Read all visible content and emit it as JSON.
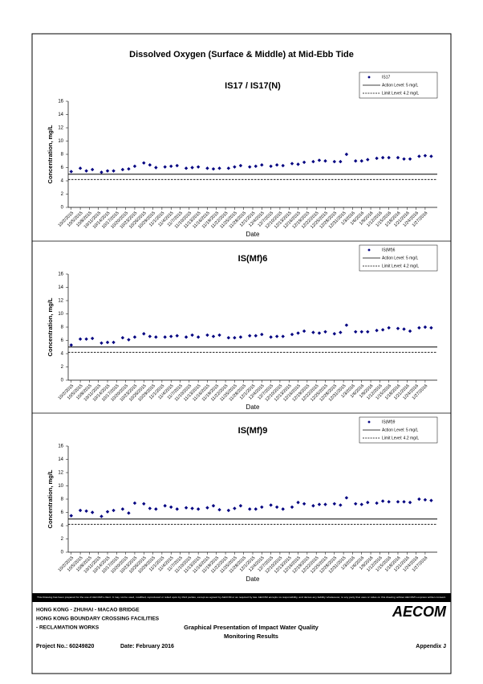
{
  "header": {
    "title": "Dissolved Oxygen (Surface & Middle) at Mid-Ebb Tide"
  },
  "chart_data": [
    {
      "type": "scatter",
      "title": "IS17 / IS17(N)",
      "x_label": "Date",
      "y_label": "Concentration, mg/L",
      "x": [
        "10/2/2015",
        "10/5/2015",
        "10/7/2015",
        "10/9/2015",
        "10/12/2015",
        "10/14/2015",
        "10/16/2015",
        "10/19/2015",
        "10/21/2015",
        "10/23/2015",
        "10/26/2015",
        "10/28/2015",
        "10/30/2015",
        "11/2/2015",
        "11/4/2015",
        "11/6/2015",
        "11/9/2015",
        "11/11/2015",
        "11/13/2015",
        "11/16/2015",
        "11/18/2015",
        "11/20/2015",
        "11/23/2015",
        "11/25/2015",
        "11/27/2015",
        "11/30/2015",
        "12/2/2015",
        "12/4/2015",
        "12/7/2015",
        "12/9/2015",
        "12/11/2015",
        "12/14/2015",
        "12/16/2015",
        "12/18/2015",
        "12/21/2015",
        "12/23/2015",
        "12/25/2015",
        "12/28/2015",
        "12/30/2015",
        "1/1/2016",
        "1/4/2016",
        "1/6/2016",
        "1/8/2016",
        "1/11/2016",
        "1/13/2016",
        "1/15/2016",
        "1/18/2016",
        "1/20/2016",
        "1/22/2016",
        "1/25/2016",
        "1/27/2016",
        "1/29/2016"
      ],
      "xlim": [
        "10/1/2015",
        "1/31/2016"
      ],
      "xticks": [
        "10/2/2015",
        "10/5/2015",
        "10/8/2015",
        "10/11/2015",
        "10/14/2015",
        "10/17/2015",
        "10/20/2015",
        "10/23/2015",
        "10/26/2015",
        "10/29/2015",
        "11/1/2015",
        "11/4/2015",
        "11/7/2015",
        "11/10/2015",
        "11/13/2015",
        "11/16/2015",
        "11/19/2015",
        "11/22/2015",
        "11/25/2015",
        "11/28/2015",
        "12/1/2015",
        "12/4/2015",
        "12/7/2015",
        "12/10/2015",
        "12/13/2015",
        "12/16/2015",
        "12/19/2015",
        "12/22/2015",
        "12/25/2015",
        "12/28/2015",
        "12/31/2015",
        "1/3/2016",
        "1/6/2016",
        "1/9/2016",
        "1/12/2016",
        "1/15/2016",
        "1/18/2016",
        "1/21/2016",
        "1/24/2016",
        "1/27/2016"
      ],
      "ylim": [
        0,
        16
      ],
      "yticks": [
        0,
        2,
        4,
        6,
        8,
        10,
        12,
        14,
        16
      ],
      "series": [
        {
          "name": "IS17",
          "color": "#000080",
          "values": [
            5.4,
            5.9,
            5.5,
            5.7,
            5.3,
            5.5,
            5.5,
            5.7,
            5.8,
            6.2,
            6.7,
            6.4,
            6.0,
            6.1,
            6.2,
            6.3,
            5.9,
            6.0,
            6.1,
            5.9,
            5.8,
            5.9,
            5.9,
            6.1,
            6.3,
            6.1,
            6.2,
            6.4,
            6.2,
            6.4,
            6.3,
            6.6,
            6.5,
            6.8,
            6.9,
            7.1,
            7.0,
            6.9,
            6.9,
            8.0,
            7.0,
            7.0,
            7.2,
            7.4,
            7.5,
            7.5,
            7.5,
            7.3,
            7.3,
            7.7,
            7.8,
            7.7
          ]
        }
      ],
      "reference_lines": [
        {
          "name": "Action Level: 5 mg/L",
          "value": 5,
          "style": "solid"
        },
        {
          "name": "Limit Level: 4.2 mg/L",
          "value": 4.2,
          "style": "dashed"
        }
      ],
      "legend": "upper right"
    },
    {
      "type": "scatter",
      "title": "IS(Mf)6",
      "x_label": "Date",
      "y_label": "Concentration, mg/L",
      "x": [
        "10/2/2015",
        "10/5/2015",
        "10/7/2015",
        "10/9/2015",
        "10/12/2015",
        "10/14/2015",
        "10/16/2015",
        "10/19/2015",
        "10/21/2015",
        "10/23/2015",
        "10/26/2015",
        "10/28/2015",
        "10/30/2015",
        "11/2/2015",
        "11/4/2015",
        "11/6/2015",
        "11/9/2015",
        "11/11/2015",
        "11/13/2015",
        "11/16/2015",
        "11/18/2015",
        "11/20/2015",
        "11/23/2015",
        "11/25/2015",
        "11/27/2015",
        "11/30/2015",
        "12/2/2015",
        "12/4/2015",
        "12/7/2015",
        "12/9/2015",
        "12/11/2015",
        "12/14/2015",
        "12/16/2015",
        "12/18/2015",
        "12/21/2015",
        "12/23/2015",
        "12/25/2015",
        "12/28/2015",
        "12/30/2015",
        "1/1/2016",
        "1/4/2016",
        "1/6/2016",
        "1/8/2016",
        "1/11/2016",
        "1/13/2016",
        "1/15/2016",
        "1/18/2016",
        "1/20/2016",
        "1/22/2016",
        "1/25/2016",
        "1/27/2016",
        "1/29/2016"
      ],
      "xlim": [
        "10/1/2015",
        "1/31/2016"
      ],
      "xticks": [
        "10/2/2015",
        "10/5/2015",
        "10/8/2015",
        "10/11/2015",
        "10/14/2015",
        "10/17/2015",
        "10/20/2015",
        "10/23/2015",
        "10/26/2015",
        "10/29/2015",
        "11/1/2015",
        "11/4/2015",
        "11/7/2015",
        "11/10/2015",
        "11/13/2015",
        "11/16/2015",
        "11/19/2015",
        "11/22/2015",
        "11/25/2015",
        "11/28/2015",
        "12/1/2015",
        "12/4/2015",
        "12/7/2015",
        "12/10/2015",
        "12/13/2015",
        "12/16/2015",
        "12/19/2015",
        "12/22/2015",
        "12/25/2015",
        "12/28/2015",
        "12/31/2015",
        "1/3/2016",
        "1/6/2016",
        "1/9/2016",
        "1/12/2016",
        "1/15/2016",
        "1/18/2016",
        "1/21/2016",
        "1/24/2016",
        "1/27/2016"
      ],
      "ylim": [
        0,
        16
      ],
      "yticks": [
        0,
        2,
        4,
        6,
        8,
        10,
        12,
        14,
        16
      ],
      "series": [
        {
          "name": "IS(Mf)6",
          "color": "#000080",
          "values": [
            5.3,
            6.2,
            6.2,
            6.3,
            5.6,
            5.7,
            5.7,
            6.4,
            6.1,
            6.5,
            7.0,
            6.6,
            6.5,
            6.5,
            6.6,
            6.7,
            6.5,
            6.8,
            6.5,
            6.8,
            6.6,
            6.8,
            6.4,
            6.4,
            6.5,
            6.7,
            6.7,
            6.9,
            6.5,
            6.6,
            6.6,
            6.9,
            7.1,
            7.4,
            7.2,
            7.1,
            7.3,
            7.0,
            7.2,
            8.3,
            7.3,
            7.3,
            7.3,
            7.5,
            7.6,
            7.9,
            7.8,
            7.7,
            7.4,
            7.9,
            8.0,
            7.9
          ]
        }
      ],
      "reference_lines": [
        {
          "name": "Action Level: 5 mg/L",
          "value": 5,
          "style": "solid"
        },
        {
          "name": "Limit Level: 4.2 mg/L",
          "value": 4.2,
          "style": "dashed"
        }
      ],
      "legend": "upper right"
    },
    {
      "type": "scatter",
      "title": "IS(Mf)9",
      "x_label": "Date",
      "y_label": "Concentration, mg/L",
      "x": [
        "10/2/2015",
        "10/5/2015",
        "10/7/2015",
        "10/9/2015",
        "10/12/2015",
        "10/14/2015",
        "10/16/2015",
        "10/19/2015",
        "10/21/2015",
        "10/23/2015",
        "10/26/2015",
        "10/28/2015",
        "10/30/2015",
        "11/2/2015",
        "11/4/2015",
        "11/6/2015",
        "11/9/2015",
        "11/11/2015",
        "11/13/2015",
        "11/16/2015",
        "11/18/2015",
        "11/20/2015",
        "11/23/2015",
        "11/25/2015",
        "11/27/2015",
        "11/30/2015",
        "12/2/2015",
        "12/4/2015",
        "12/7/2015",
        "12/9/2015",
        "12/11/2015",
        "12/14/2015",
        "12/16/2015",
        "12/18/2015",
        "12/21/2015",
        "12/23/2015",
        "12/25/2015",
        "12/28/2015",
        "12/30/2015",
        "1/1/2016",
        "1/4/2016",
        "1/6/2016",
        "1/8/2016",
        "1/11/2016",
        "1/13/2016",
        "1/15/2016",
        "1/18/2016",
        "1/20/2016",
        "1/22/2016",
        "1/25/2016",
        "1/27/2016",
        "1/29/2016"
      ],
      "xlim": [
        "10/1/2015",
        "1/31/2016"
      ],
      "xticks": [
        "10/2/2015",
        "10/5/2015",
        "10/8/2015",
        "10/11/2015",
        "10/14/2015",
        "10/17/2015",
        "10/20/2015",
        "10/23/2015",
        "10/26/2015",
        "10/29/2015",
        "11/1/2015",
        "11/4/2015",
        "11/7/2015",
        "11/10/2015",
        "11/13/2015",
        "11/16/2015",
        "11/19/2015",
        "11/22/2015",
        "11/25/2015",
        "11/28/2015",
        "12/1/2015",
        "12/4/2015",
        "12/7/2015",
        "12/10/2015",
        "12/13/2015",
        "12/16/2015",
        "12/19/2015",
        "12/22/2015",
        "12/25/2015",
        "12/28/2015",
        "12/31/2015",
        "1/3/2016",
        "1/6/2016",
        "1/9/2016",
        "1/12/2016",
        "1/15/2016",
        "1/18/2016",
        "1/21/2016",
        "1/24/2016",
        "1/27/2016"
      ],
      "ylim": [
        0,
        16
      ],
      "yticks": [
        0,
        2,
        4,
        6,
        8,
        10,
        12,
        14,
        16
      ],
      "series": [
        {
          "name": "IS(Mf)9",
          "color": "#000080",
          "values": [
            5.5,
            6.3,
            6.2,
            6.0,
            5.4,
            6.1,
            6.3,
            6.5,
            5.9,
            7.4,
            7.3,
            6.6,
            6.5,
            7.0,
            6.8,
            6.5,
            6.7,
            6.6,
            6.5,
            6.7,
            7.0,
            6.4,
            6.3,
            6.6,
            7.0,
            6.5,
            6.5,
            6.8,
            7.1,
            6.8,
            6.5,
            6.8,
            7.5,
            7.3,
            7.0,
            7.2,
            7.2,
            7.3,
            7.1,
            8.2,
            7.3,
            7.2,
            7.5,
            7.4,
            7.7,
            7.6,
            7.6,
            7.6,
            7.5,
            8.0,
            7.9,
            7.8
          ]
        }
      ],
      "reference_lines": [
        {
          "name": "Action Level: 5 mg/L",
          "value": 5,
          "style": "solid"
        },
        {
          "name": "Limit Level: 4.2 mg/L",
          "value": 4.2,
          "style": "dashed"
        }
      ],
      "legend": "upper right"
    }
  ],
  "footer": {
    "disclaimer": "This Drawing has been prepared for the use of AECOM's client. It may not be used, modified, reproduced or relied upon by third parties, except as agreed by AECOM or as required by law. AECOM accepts no responsibility, and denies any liability whatsoever, to any party that uses or relies on this drawing without AECOM's express written consent.",
    "project_lines": [
      "HONG KONG - ZHUHAI - MACAO BRIDGE",
      "HONG KONG BOUNDARY CROSSING FACILITIES",
      "- RECLAMATION WORKS"
    ],
    "logo": "AECOM",
    "subtitle_lines": [
      "Graphical Presentation of Impact Water Quality",
      "Monitoring Results"
    ],
    "project_no": "Project No.: 60249820",
    "date": "Date: February 2016",
    "appendix": "Appendix J"
  }
}
